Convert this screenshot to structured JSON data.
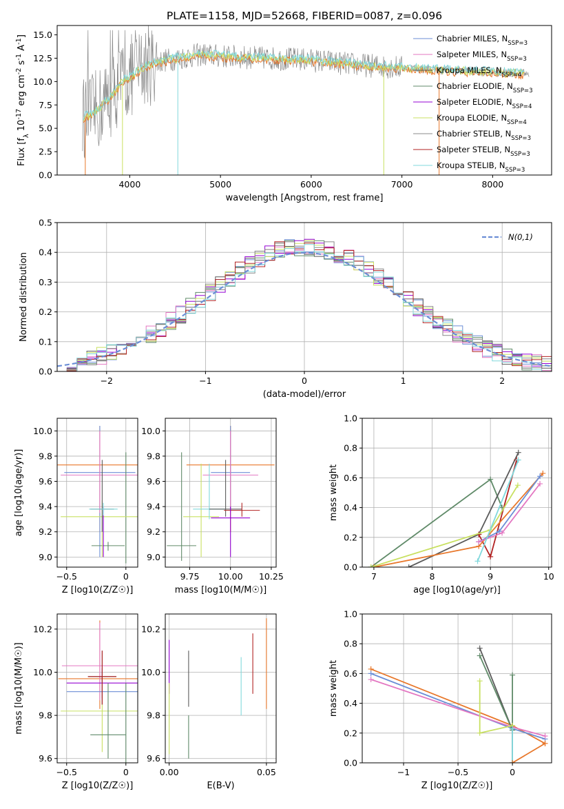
{
  "figure": {
    "title": "PLATE=1158, MJD=52668, FIBERID=0087, z=0.096"
  },
  "colors": {
    "s0": "#6b8ed6",
    "s1": "#e377c2",
    "s2": "#5a5a5a",
    "s3": "#5f8a68",
    "s4": "#9400d3",
    "s5": "#c8e060",
    "s6": "#888888",
    "s7": "#b22222",
    "s8": "#80d8dc",
    "orange": "#e8772a",
    "dash": "#6b8ed6"
  },
  "chart_data": [
    {
      "id": "spectrum",
      "type": "line",
      "xlabel": "wavelength [Angstrom, rest frame]",
      "ylabel": "Flux [f_λ 10^-17 erg cm^-2 s^-1 A^-1]",
      "xlim": [
        3200,
        8650
      ],
      "ylim": [
        0,
        16
      ],
      "xticks": [
        4000,
        5000,
        6000,
        7000,
        8000
      ],
      "yticks": [
        0.0,
        2.5,
        5.0,
        7.5,
        10.0,
        12.5,
        15.0
      ],
      "legend_position": "upper-right",
      "legend": [
        "Chabrier MILES, N_SSP=3",
        "Salpeter MILES, N_SSP=3",
        "Kroupa MILES, N_SSP=4",
        "Chabrier ELODIE, N_SSP=3",
        "Salpeter ELODIE, N_SSP=4",
        "Kroupa ELODIE, N_SSP=4",
        "Chabrier STELIB, N_SSP=3",
        "Salpeter STELIB, N_SSP=3",
        "Kroupa STELIB, N_SSP=3"
      ],
      "continuum_x": [
        3500,
        3600,
        3700,
        3800,
        3900,
        4000,
        4100,
        4200,
        4400,
        4600,
        4800,
        5000,
        5500,
        6000,
        6500,
        7000,
        7500,
        8000,
        8500
      ],
      "continuum_y": [
        6.2,
        6.5,
        7.5,
        8.5,
        9.8,
        10.5,
        11.2,
        11.8,
        12.3,
        12.6,
        12.9,
        12.7,
        12.5,
        12.3,
        11.8,
        11.5,
        11.2,
        11.0,
        10.8
      ]
    },
    {
      "id": "residuals",
      "type": "line",
      "xlabel": "(data-model)/error",
      "ylabel": "Normed distribution",
      "xlim": [
        -2.5,
        2.5
      ],
      "ylim": [
        0,
        0.5
      ],
      "xticks": [
        -2,
        -1,
        0,
        1,
        2
      ],
      "yticks": [
        0.0,
        0.1,
        0.2,
        0.3,
        0.4,
        0.5
      ],
      "grid": true,
      "legend_position": "upper-right",
      "legend": [
        "N(0,1)"
      ],
      "bin_width": 0.1
    },
    {
      "id": "age-vs-Z",
      "type": "scatter",
      "xlabel": "Z [log10(Z/Z☉)]",
      "ylabel": "age  [log10(age/yr)]",
      "xlim": [
        -0.58,
        0.1
      ],
      "ylim": [
        8.92,
        10.1
      ],
      "xticks": [
        -0.5,
        0.0
      ],
      "yticks": [
        9.0,
        9.2,
        9.4,
        9.6,
        9.8,
        10.0
      ],
      "grid": true,
      "points": [
        {
          "c": "orange",
          "x": -0.22,
          "xerr": 0.36,
          "y": 9.73,
          "ylo": 9.2,
          "yhi": 10.04
        },
        {
          "c": "s0",
          "x": -0.22,
          "xerr": 0.3,
          "y": 9.67,
          "ylo": 9.0,
          "yhi": 10.04
        },
        {
          "c": "s1",
          "x": -0.22,
          "xerr": 0.33,
          "y": 9.65,
          "ylo": 9.35,
          "yhi": 10.0
        },
        {
          "c": "s3",
          "x": -0.15,
          "xerr": 0.14,
          "y": 9.09,
          "ylo": 9.05,
          "yhi": 9.12
        },
        {
          "c": "s3",
          "x": 0.0,
          "xerr": 0.0,
          "y": 9.4,
          "ylo": 8.95,
          "yhi": 9.83
        },
        {
          "c": "s5",
          "x": -0.2,
          "xerr": 0.35,
          "y": 9.32,
          "ylo": 9.0,
          "yhi": 9.45
        },
        {
          "c": "s2",
          "x": -0.2,
          "xerr": 0.1,
          "y": 9.38,
          "ylo": 9.2,
          "yhi": 9.77
        },
        {
          "c": "s4",
          "x": -0.19,
          "xerr": 0.0,
          "y": 9.2,
          "ylo": 9.0,
          "yhi": 9.4
        },
        {
          "c": "s8",
          "x": -0.19,
          "xerr": 0.12,
          "y": 9.38,
          "ylo": 9.33,
          "yhi": 9.43
        }
      ]
    },
    {
      "id": "age-vs-mass",
      "type": "scatter",
      "xlabel": "mass [log10(M/M☉)]",
      "ylabel": "",
      "xlim": [
        9.6,
        10.28
      ],
      "ylim": [
        8.92,
        10.1
      ],
      "xticks": [
        9.75,
        10.0,
        10.25
      ],
      "yticks": [
        9.0,
        9.2,
        9.4,
        9.6,
        9.8,
        10.0
      ],
      "grid": true,
      "points": [
        {
          "c": "orange",
          "x": 10.0,
          "xerr": 0.27,
          "y": 9.73,
          "ylo": 9.2,
          "yhi": 10.04
        },
        {
          "c": "s0",
          "x": 10.0,
          "xerr": 0.12,
          "y": 9.67,
          "ylo": 9.35,
          "yhi": 10.04
        },
        {
          "c": "s1",
          "x": 10.0,
          "xerr": 0.17,
          "y": 9.65,
          "ylo": 9.35,
          "yhi": 10.0
        },
        {
          "c": "s3",
          "x": 9.7,
          "xerr": 0.09,
          "y": 9.09,
          "ylo": 8.97,
          "yhi": 9.83
        },
        {
          "c": "s5",
          "x": 9.82,
          "xerr": 0.11,
          "y": 9.32,
          "ylo": 9.0,
          "yhi": 9.74
        },
        {
          "c": "s8",
          "x": 9.87,
          "xerr": 0.1,
          "y": 9.38,
          "ylo": 9.3,
          "yhi": 9.74
        },
        {
          "c": "s2",
          "x": 9.97,
          "xerr": 0.1,
          "y": 9.38,
          "ylo": 9.32,
          "yhi": 9.77
        },
        {
          "c": "s7",
          "x": 10.07,
          "xerr": 0.11,
          "y": 9.37,
          "ylo": 9.32,
          "yhi": 9.43
        },
        {
          "c": "s4",
          "x": 10.0,
          "xerr": 0.12,
          "y": 9.31,
          "ylo": 9.0,
          "yhi": 9.4
        }
      ]
    },
    {
      "id": "mass-weight-vs-age",
      "type": "line",
      "xlabel": "age  [log10(age/yr)]",
      "ylabel": "mass weight",
      "xlim": [
        6.8,
        10.05
      ],
      "ylim": [
        0,
        1.0
      ],
      "xticks": [
        7,
        8,
        9,
        10
      ],
      "yticks": [
        0.0,
        0.2,
        0.4,
        0.6,
        0.8,
        1.0
      ],
      "grid": true,
      "series": [
        {
          "c": "s3",
          "x": [
            6.95,
            9.0,
            9.2
          ],
          "y": [
            0.0,
            0.59,
            0.4
          ]
        },
        {
          "c": "s2",
          "x": [
            7.6,
            8.8,
            9.48
          ],
          "y": [
            0.0,
            0.22,
            0.77
          ]
        },
        {
          "c": "s7",
          "x": [
            8.8,
            9.0,
            9.45
          ],
          "y": [
            0.22,
            0.07,
            0.72
          ]
        },
        {
          "c": "orange",
          "x": [
            7.0,
            8.8,
            9.9
          ],
          "y": [
            0.0,
            0.14,
            0.63
          ]
        },
        {
          "c": "s5",
          "x": [
            6.95,
            9.0,
            9.47
          ],
          "y": [
            0.0,
            0.25,
            0.55
          ]
        },
        {
          "c": "s0",
          "x": [
            8.8,
            9.15,
            9.85
          ],
          "y": [
            0.17,
            0.24,
            0.61
          ]
        },
        {
          "c": "s1",
          "x": [
            8.8,
            9.2,
            9.85
          ],
          "y": [
            0.17,
            0.23,
            0.56
          ]
        },
        {
          "c": "s8",
          "x": [
            8.78,
            9.48
          ],
          "y": [
            0.04,
            0.72
          ]
        }
      ]
    },
    {
      "id": "mass-vs-Z",
      "type": "scatter",
      "xlabel": "Z [log10(Z/Z☉)]",
      "ylabel": "mass [log10(M/M☉)]",
      "xlim": [
        -0.58,
        0.1
      ],
      "ylim": [
        9.58,
        10.27
      ],
      "xticks": [
        -0.5,
        0.0
      ],
      "yticks": [
        9.6,
        9.8,
        10.0,
        10.2
      ],
      "grid": true,
      "points": [
        {
          "c": "orange",
          "x": -0.22,
          "xerr": 0.35,
          "y": 9.97,
          "ylo": 9.83,
          "yhi": 10.24
        },
        {
          "c": "s1",
          "x": -0.22,
          "xerr": 0.32,
          "y": 10.03,
          "ylo": 9.87,
          "yhi": 10.23
        },
        {
          "c": "s0",
          "x": -0.2,
          "xerr": 0.3,
          "y": 9.91,
          "ylo": 9.85,
          "yhi": 10.0
        },
        {
          "c": "s4",
          "x": -0.2,
          "xerr": 0.3,
          "y": 9.95,
          "ylo": 9.88,
          "yhi": 10.02
        },
        {
          "c": "s5",
          "x": -0.2,
          "xerr": 0.35,
          "y": 9.82,
          "ylo": 9.63,
          "yhi": 9.97
        },
        {
          "c": "s3",
          "x": -0.15,
          "xerr": 0.15,
          "y": 9.71,
          "ylo": 9.6,
          "yhi": 9.95
        },
        {
          "c": "s3",
          "x": 0.0,
          "xerr": 0.0,
          "y": 9.8,
          "ylo": 9.58,
          "yhi": 9.95
        },
        {
          "c": "s2",
          "x": -0.2,
          "xerr": 0.12,
          "y": 9.98,
          "ylo": 9.85,
          "yhi": 10.1
        },
        {
          "c": "s7",
          "x": -0.2,
          "xerr": 0.12,
          "y": 9.98,
          "ylo": 9.85,
          "yhi": 10.1
        }
      ]
    },
    {
      "id": "mass-vs-ebv",
      "type": "scatter",
      "xlabel": "E(B-V)",
      "ylabel": "",
      "xlim": [
        -0.002,
        0.055
      ],
      "ylim": [
        9.58,
        10.27
      ],
      "xticks": [
        0.0,
        0.05
      ],
      "yticks": [
        9.6,
        9.8,
        10.0,
        10.2
      ],
      "grid": true,
      "points": [
        {
          "c": "s4",
          "x": 0.0,
          "ylo": 9.9,
          "yhi": 10.15
        },
        {
          "c": "s5",
          "x": 0.0,
          "ylo": 9.62,
          "yhi": 9.95
        },
        {
          "c": "s2",
          "x": 0.01,
          "ylo": 9.84,
          "yhi": 10.1
        },
        {
          "c": "s3",
          "x": 0.01,
          "ylo": 9.6,
          "yhi": 9.8
        },
        {
          "c": "s8",
          "x": 0.037,
          "ylo": 9.8,
          "yhi": 10.07
        },
        {
          "c": "s7",
          "x": 0.043,
          "ylo": 9.9,
          "yhi": 10.18
        },
        {
          "c": "orange",
          "x": 0.05,
          "ylo": 9.83,
          "yhi": 10.25
        }
      ]
    },
    {
      "id": "mass-weight-vs-Z",
      "type": "line",
      "xlabel": "Z [log10(Z/Z☉)]",
      "ylabel": "mass weight",
      "xlim": [
        -1.38,
        0.36
      ],
      "ylim": [
        0,
        1.0
      ],
      "xticks": [
        -1.0,
        -0.5,
        0.0
      ],
      "yticks": [
        0.0,
        0.2,
        0.4,
        0.6,
        0.8,
        1.0
      ],
      "grid": true,
      "series": [
        {
          "c": "orange",
          "x": [
            -1.3,
            0.0,
            0.3
          ],
          "y": [
            0.63,
            0.25,
            0.13
          ]
        },
        {
          "c": "s0",
          "x": [
            -1.3,
            0.0,
            0.3
          ],
          "y": [
            0.6,
            0.23,
            0.16
          ]
        },
        {
          "c": "s1",
          "x": [
            -1.3,
            0.0,
            0.3
          ],
          "y": [
            0.56,
            0.24,
            0.18
          ]
        },
        {
          "c": "s2",
          "x": [
            -0.3,
            0.0,
            0.0
          ],
          "y": [
            0.77,
            0.22,
            0.0
          ]
        },
        {
          "c": "s3",
          "x": [
            -0.3,
            0.0,
            0.0
          ],
          "y": [
            0.72,
            0.22,
            0.59
          ]
        },
        {
          "c": "s5",
          "x": [
            -0.3,
            -0.3,
            0.0
          ],
          "y": [
            0.55,
            0.2,
            0.25
          ]
        },
        {
          "c": "s8",
          "x": [
            0.0,
            0.0
          ],
          "y": [
            0.0,
            0.23
          ]
        },
        {
          "c": "orange",
          "x": [
            0.0,
            0.3
          ],
          "y": [
            0.0,
            0.13
          ]
        }
      ]
    }
  ]
}
